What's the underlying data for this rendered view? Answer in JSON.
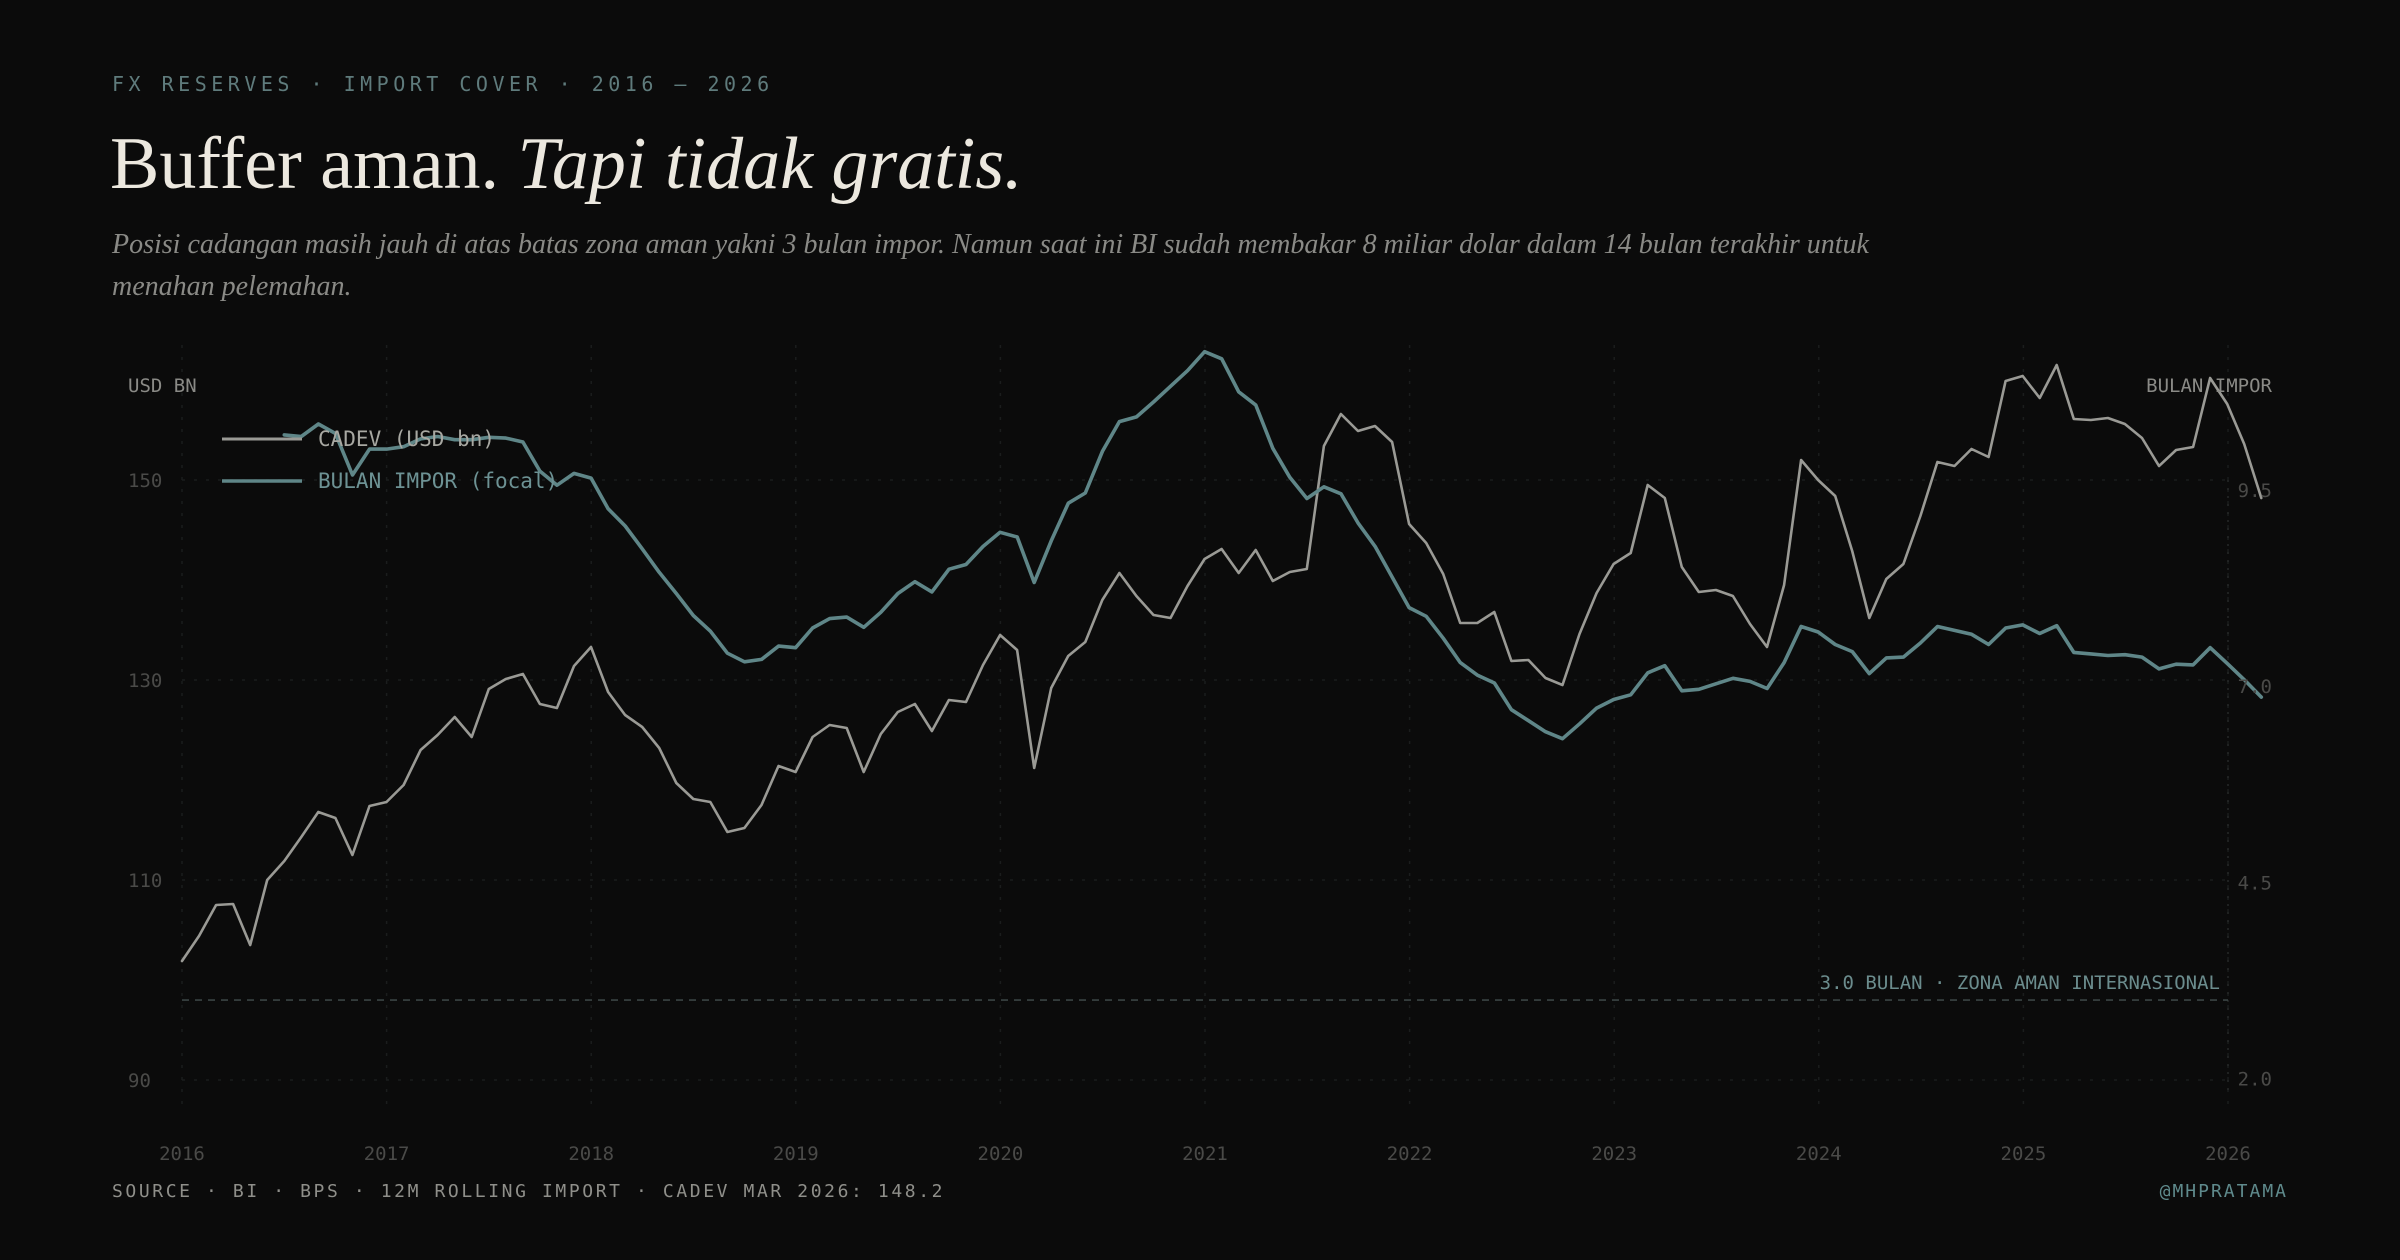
{
  "header": {
    "kicker": "FX RESERVES · IMPORT COVER · 2016 — 2026",
    "title_plain": "Buffer aman. ",
    "title_italic": "Tapi tidak gratis.",
    "subtitle": "Posisi cadangan masih jauh di atas batas zona aman yakni 3 bulan impor. Namun saat ini BI sudah membakar 8 miliar dolar dalam 14 bulan terakhir untuk menahan pelemahan."
  },
  "footer": {
    "source": "SOURCE · BI · BPS · 12M ROLLING IMPORT · CADEV MAR 2026: 148.2",
    "credit": "@MHPRATAMA"
  },
  "colors": {
    "cadev": "#9a9a95",
    "import": "#5f8688",
    "grid": "#1b1d1d",
    "tick": "#4a4a48",
    "threshold": "#3a4444",
    "threshold_label": "#6b8c8d"
  },
  "chart_data": {
    "type": "line",
    "title": "Buffer aman. Tapi tidak gratis.",
    "left_axis_label": "USD BN",
    "right_axis_label": "BULAN IMPOR",
    "left_ylim": [
      87,
      160
    ],
    "right_ylim": [
      1.6,
      10.9
    ],
    "left_ticks": [
      "90",
      "110",
      "130",
      "150"
    ],
    "right_ticks": [
      "2.0",
      "4.5",
      "7.0",
      "9.5"
    ],
    "left_tick_values": [
      90,
      110,
      130,
      150
    ],
    "right_tick_values": [
      2.0,
      4.5,
      7.0,
      9.5
    ],
    "xlim": [
      2016.0,
      2026.0
    ],
    "x_ticks": [
      "2016",
      "2017",
      "2018",
      "2019",
      "2020",
      "2021",
      "2022",
      "2023",
      "2024",
      "2025",
      "2026"
    ],
    "x_tick_values": [
      2016,
      2017,
      2018,
      2019,
      2020,
      2021,
      2022,
      2023,
      2024,
      2025,
      2026
    ],
    "threshold": {
      "value": 3.0,
      "label": "3.0 BULAN · ZONA AMAN INTERNASIONAL"
    },
    "series": [
      {
        "name": "CADEV (USD bn)",
        "axis": "left",
        "x_start": 2016.0,
        "step": 0.0833,
        "values": [
          101.9,
          104.4,
          107.5,
          107.6,
          103.5,
          110.0,
          111.9,
          114.3,
          116.8,
          116.2,
          112.5,
          117.4,
          117.8,
          119.5,
          123.0,
          124.5,
          126.3,
          124.3,
          129.1,
          130.1,
          130.6,
          127.6,
          127.2,
          131.4,
          133.3,
          128.8,
          126.5,
          125.3,
          123.2,
          119.7,
          118.1,
          117.8,
          114.8,
          115.2,
          117.5,
          121.4,
          120.8,
          124.3,
          125.5,
          125.2,
          120.8,
          124.6,
          126.8,
          127.6,
          124.9,
          128.0,
          127.8,
          131.5,
          134.5,
          133.0,
          121.2,
          129.2,
          132.4,
          133.8,
          138.0,
          140.7,
          138.4,
          136.5,
          136.2,
          139.4,
          142.1,
          143.1,
          140.7,
          143.0,
          139.9,
          140.8,
          141.1,
          153.4,
          156.6,
          154.9,
          155.4,
          153.8,
          145.6,
          143.7,
          140.6,
          135.7,
          135.7,
          136.8,
          131.9,
          132.0,
          130.2,
          129.5,
          134.6,
          138.7,
          141.6,
          142.7,
          149.5,
          148.2,
          141.3,
          138.8,
          139.0,
          138.4,
          135.6,
          133.3,
          139.5,
          152.0,
          150.0,
          148.4,
          142.9,
          136.2,
          140.1,
          141.6,
          146.4,
          151.8,
          151.4,
          153.1,
          152.3,
          159.9,
          160.4,
          158.2,
          161.5,
          156.1,
          156.0,
          156.2,
          155.6,
          154.2,
          151.4,
          153.0,
          153.3,
          160.2,
          157.6,
          153.6,
          148.2
        ]
      },
      {
        "name": "BULAN IMPOR (focal)",
        "axis": "right",
        "x_start": 2016.5,
        "step": 0.0833,
        "values": [
          10.2,
          10.18,
          10.34,
          10.22,
          9.69,
          10.02,
          10.02,
          10.05,
          10.15,
          10.18,
          10.14,
          10.14,
          10.17,
          10.16,
          10.11,
          9.74,
          9.56,
          9.71,
          9.65,
          9.26,
          9.04,
          8.75,
          8.45,
          8.18,
          7.9,
          7.7,
          7.42,
          7.31,
          7.34,
          7.51,
          7.49,
          7.74,
          7.86,
          7.88,
          7.75,
          7.94,
          8.18,
          8.33,
          8.2,
          8.49,
          8.55,
          8.78,
          8.96,
          8.9,
          8.32,
          8.85,
          9.33,
          9.46,
          9.99,
          10.37,
          10.43,
          10.62,
          10.82,
          11.02,
          11.26,
          11.17,
          10.75,
          10.58,
          10.03,
          9.66,
          9.39,
          9.54,
          9.45,
          9.08,
          8.78,
          8.39,
          8.0,
          7.89,
          7.61,
          7.3,
          7.14,
          7.04,
          6.7,
          6.56,
          6.42,
          6.33,
          6.52,
          6.72,
          6.83,
          6.89,
          7.17,
          7.26,
          6.94,
          6.96,
          7.03,
          7.1,
          7.06,
          6.97,
          7.3,
          7.76,
          7.69,
          7.53,
          7.44,
          7.16,
          7.36,
          7.37,
          7.55,
          7.76,
          7.71,
          7.66,
          7.53,
          7.74,
          7.78,
          7.67,
          7.77,
          7.43,
          7.41,
          7.39,
          7.4,
          7.37,
          7.22,
          7.28,
          7.27,
          7.49,
          7.29,
          7.08,
          6.86
        ]
      }
    ]
  }
}
